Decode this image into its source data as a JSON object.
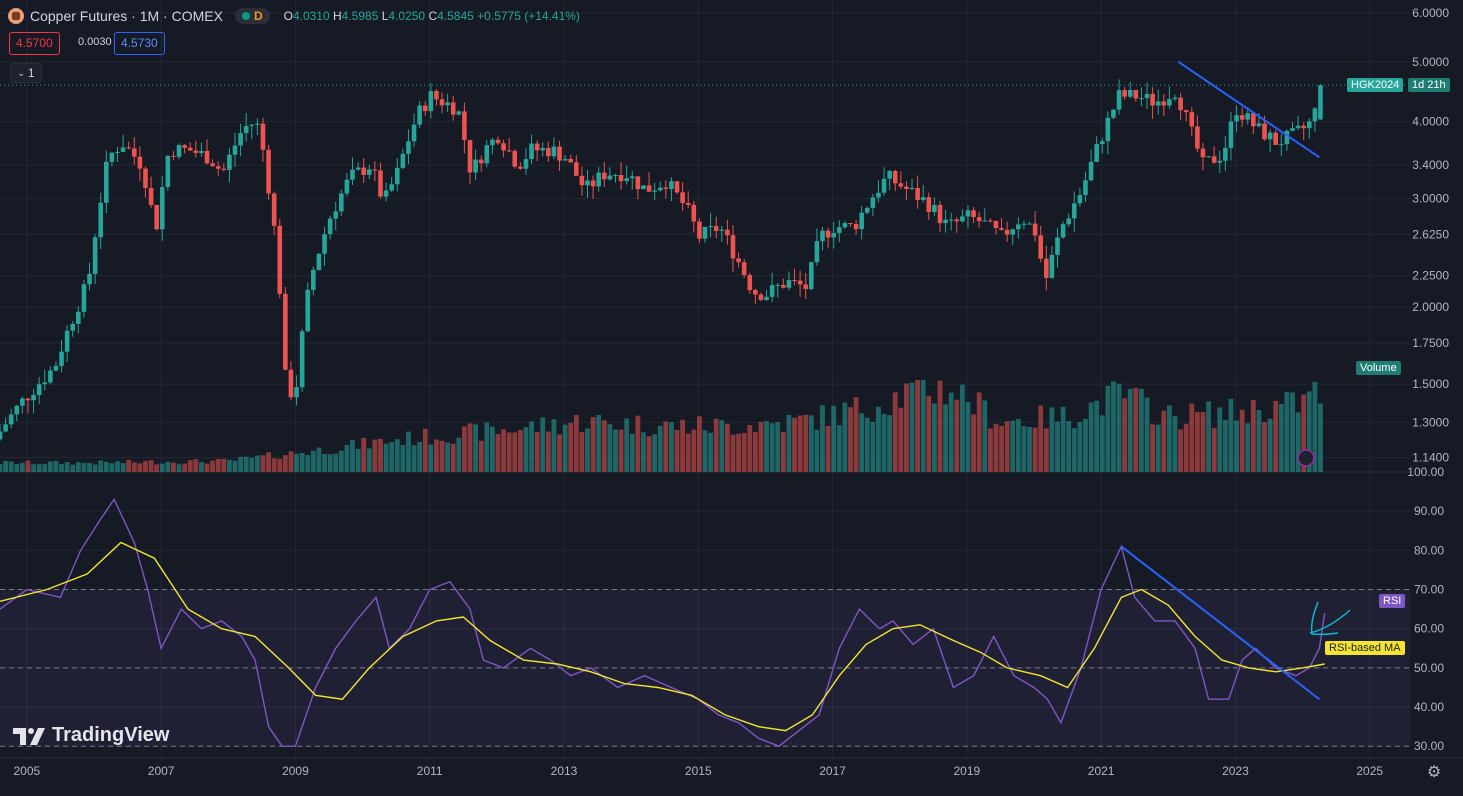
{
  "header": {
    "symbol_title": "Copper Futures · 1M · COMEX",
    "market_status_letter": "D",
    "ohlc": {
      "o_label": "O",
      "o": "4.0310",
      "h_label": "H",
      "h": "4.5985",
      "l_label": "L",
      "l": "4.0250",
      "c_label": "C",
      "c": "4.5845",
      "change": "+0.5775 (+14.41%)"
    },
    "bid": "4.5700",
    "spread": "0.0030",
    "ask": "4.5730",
    "collapse_label": "1"
  },
  "price_axis": {
    "ticks": [
      "6.0000",
      "5.0000",
      "4.0000",
      "3.4000",
      "3.0000",
      "2.6250",
      "2.2500",
      "2.0000",
      "1.7500",
      "1.5000",
      "1.3000",
      "1.1400"
    ]
  },
  "rsi_axis": {
    "ticks": [
      "100.00",
      "90.00",
      "80.00",
      "70.00",
      "60.00",
      "50.00",
      "40.00",
      "30.00"
    ]
  },
  "time_axis": {
    "labels": [
      "2005",
      "2007",
      "2009",
      "2011",
      "2013",
      "2015",
      "2017",
      "2019",
      "2021",
      "2023",
      "2025"
    ]
  },
  "tags": {
    "contract": "HGK2024",
    "countdown": "1d 21h",
    "volume": "Volume",
    "rsi": "RSI",
    "rsi_ma": "RSI-based MA"
  },
  "brand": {
    "name": "TradingView"
  },
  "colors": {
    "up": "#26a69a",
    "down": "#ef5350",
    "rsi": "#7e57c2",
    "rsi_ma": "#f3e531",
    "trendline": "#2962ff",
    "background": "#161a25"
  },
  "chart_data": [
    {
      "type": "candlestick",
      "title": "Copper Futures · 1M · COMEX",
      "scale": "log",
      "ylim": [
        1.08,
        6.3
      ],
      "xlim": [
        2004.6,
        2025.6
      ],
      "y_ticks": [
        6.0,
        5.0,
        4.0,
        3.4,
        3.0,
        2.625,
        2.25,
        2.0,
        1.75,
        1.5,
        1.3,
        1.14
      ],
      "anchors_x": [
        2004.6,
        2005.0,
        2005.5,
        2006.0,
        2006.3,
        2006.5,
        2006.8,
        2007.0,
        2007.2,
        2007.5,
        2007.8,
        2008.0,
        2008.3,
        2008.5,
        2008.6,
        2008.8,
        2008.95,
        2009.1,
        2009.3,
        2009.6,
        2009.9,
        2010.2,
        2010.4,
        2010.6,
        2010.9,
        2011.1,
        2011.5,
        2011.7,
        2011.9,
        2012.1,
        2012.4,
        2012.6,
        2012.9,
        2013.1,
        2013.4,
        2013.7,
        2014.0,
        2014.3,
        2014.6,
        2014.9,
        2015.1,
        2015.4,
        2015.7,
        2015.9,
        2016.1,
        2016.4,
        2016.7,
        2016.9,
        2017.1,
        2017.4,
        2017.7,
        2017.9,
        2018.2,
        2018.5,
        2018.8,
        2019.1,
        2019.3,
        2019.6,
        2019.9,
        2020.1,
        2020.25,
        2020.5,
        2020.8,
        2021.1,
        2021.35,
        2021.6,
        2021.9,
        2022.2,
        2022.4,
        2022.6,
        2022.9,
        2023.1,
        2023.4,
        2023.7,
        2023.95,
        2024.1,
        2024.25,
        2024.33
      ],
      "anchors_y": [
        1.22,
        1.4,
        1.6,
        2.2,
        3.5,
        3.7,
        3.4,
        2.65,
        3.6,
        3.6,
        3.5,
        3.3,
        3.9,
        4.0,
        3.6,
        2.5,
        1.42,
        1.5,
        2.2,
        2.8,
        3.25,
        3.4,
        2.95,
        3.3,
        4.1,
        4.4,
        4.2,
        3.3,
        3.6,
        3.8,
        3.4,
        3.6,
        3.6,
        3.5,
        3.1,
        3.3,
        3.3,
        3.1,
        3.2,
        2.9,
        2.6,
        2.7,
        2.35,
        2.12,
        2.1,
        2.2,
        2.15,
        2.6,
        2.7,
        2.7,
        3.05,
        3.25,
        3.1,
        2.95,
        2.7,
        2.8,
        2.75,
        2.6,
        2.8,
        2.65,
        2.2,
        2.7,
        3.1,
        3.8,
        4.4,
        4.4,
        4.3,
        4.5,
        3.9,
        3.4,
        3.55,
        4.2,
        3.9,
        3.7,
        3.8,
        3.9,
        4.03,
        4.58
      ],
      "last": {
        "open": 4.031,
        "high": 4.5985,
        "low": 4.025,
        "close": 4.5845
      },
      "trendline": {
        "x": [
          2022.15,
          2024.25
        ],
        "y": [
          5.0,
          3.5
        ]
      },
      "legend": "none"
    },
    {
      "type": "bar",
      "title": "Volume",
      "axis": "none",
      "anchors_x": [
        2004.6,
        2006.0,
        2008.0,
        2009.5,
        2010.5,
        2012.0,
        2013.3,
        2014.5,
        2015.5,
        2016.5,
        2016.85,
        2017.5,
        2018.3,
        2018.8,
        2019.5,
        2020.5,
        2021.3,
        2022.0,
        2023.0,
        2024.0,
        2024.33
      ],
      "anchors_v": [
        0.1,
        0.1,
        0.12,
        0.25,
        0.35,
        0.45,
        0.55,
        0.5,
        0.5,
        0.55,
        0.6,
        0.7,
        0.9,
        0.9,
        0.55,
        0.6,
        0.85,
        0.6,
        0.65,
        0.75,
        0.95
      ]
    },
    {
      "type": "line",
      "title": "RSI",
      "ylim": [
        27,
        100
      ],
      "y_ticks": [
        100,
        90,
        80,
        70,
        60,
        50,
        40,
        30
      ],
      "bands": [
        30,
        50,
        70
      ],
      "series": [
        {
          "name": "RSI",
          "x": [
            2004.6,
            2005.0,
            2005.5,
            2005.8,
            2006.1,
            2006.3,
            2006.6,
            2006.8,
            2007.0,
            2007.3,
            2007.6,
            2007.9,
            2008.2,
            2008.4,
            2008.6,
            2008.8,
            2009.0,
            2009.3,
            2009.6,
            2009.9,
            2010.2,
            2010.4,
            2010.7,
            2011.0,
            2011.3,
            2011.6,
            2011.8,
            2012.1,
            2012.5,
            2012.8,
            2013.1,
            2013.4,
            2013.8,
            2014.2,
            2014.6,
            2015.0,
            2015.3,
            2015.6,
            2015.9,
            2016.2,
            2016.5,
            2016.8,
            2017.1,
            2017.4,
            2017.7,
            2017.9,
            2018.2,
            2018.5,
            2018.8,
            2019.1,
            2019.4,
            2019.7,
            2020.0,
            2020.2,
            2020.4,
            2020.7,
            2021.0,
            2021.3,
            2021.5,
            2021.8,
            2022.1,
            2022.4,
            2022.6,
            2022.9,
            2023.1,
            2023.3,
            2023.6,
            2023.9,
            2024.1,
            2024.25,
            2024.33
          ],
          "y": [
            65,
            70,
            68,
            80,
            88,
            93,
            82,
            70,
            55,
            65,
            60,
            62,
            58,
            52,
            35,
            30,
            30,
            45,
            55,
            62,
            68,
            55,
            60,
            70,
            72,
            65,
            52,
            50,
            55,
            52,
            48,
            50,
            45,
            48,
            45,
            42,
            38,
            36,
            32,
            30,
            34,
            38,
            55,
            65,
            60,
            62,
            56,
            60,
            45,
            48,
            58,
            48,
            45,
            42,
            36,
            50,
            70,
            81,
            68,
            62,
            62,
            55,
            42,
            42,
            52,
            55,
            50,
            48,
            50,
            55,
            64
          ]
        },
        {
          "name": "RSI-based MA",
          "x": [
            2004.6,
            2005.3,
            2005.9,
            2006.4,
            2006.9,
            2007.4,
            2007.9,
            2008.4,
            2008.9,
            2009.3,
            2009.7,
            2010.1,
            2010.6,
            2011.1,
            2011.5,
            2011.9,
            2012.4,
            2012.9,
            2013.4,
            2013.9,
            2014.4,
            2014.9,
            2015.4,
            2015.9,
            2016.3,
            2016.7,
            2017.1,
            2017.5,
            2017.9,
            2018.3,
            2018.8,
            2019.2,
            2019.6,
            2020.1,
            2020.5,
            2020.9,
            2021.3,
            2021.6,
            2022.0,
            2022.4,
            2022.8,
            2023.2,
            2023.6,
            2024.0,
            2024.33
          ],
          "y": [
            67,
            70,
            74,
            82,
            78,
            65,
            60,
            58,
            50,
            43,
            42,
            50,
            58,
            62,
            63,
            57,
            52,
            51,
            49,
            46,
            45,
            43,
            38,
            35,
            34,
            38,
            48,
            56,
            60,
            61,
            57,
            54,
            50,
            48,
            45,
            55,
            68,
            70,
            66,
            58,
            52,
            50,
            49,
            50,
            51
          ]
        }
      ],
      "trendline": {
        "x": [
          2021.3,
          2024.25
        ],
        "y": [
          81,
          42
        ]
      },
      "legend": "none"
    }
  ]
}
